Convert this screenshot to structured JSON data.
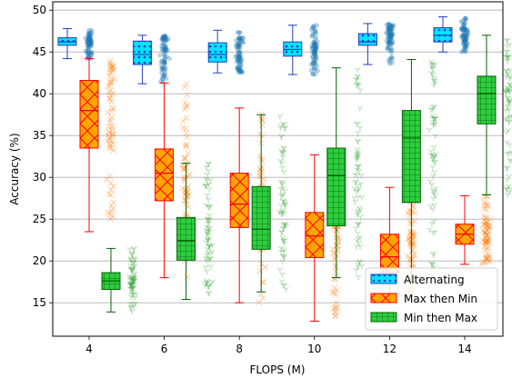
{
  "chart_data": {
    "type": "box",
    "title": "",
    "xlabel": "FLOPS (M)",
    "ylabel": "Accuracy (%)",
    "categories": [
      "4",
      "6",
      "8",
      "10",
      "12",
      "14"
    ],
    "ylim": [
      11,
      51
    ],
    "yticks": [
      15,
      20,
      25,
      30,
      35,
      40,
      45,
      50
    ],
    "grid": "horizontal",
    "legend_position": "lower right",
    "series": [
      {
        "name": "Alternating",
        "face_color": "#00e5ff",
        "edge_color": "#1f3fbf",
        "hatch": "dots",
        "point_color": "#1f77b4",
        "point_marker": "circle",
        "boxes": [
          {
            "whislo": 44.2,
            "q1": 45.8,
            "med": 46.2,
            "q3": 46.7,
            "whishi": 47.8
          },
          {
            "whislo": 41.2,
            "q1": 43.5,
            "med": 44.7,
            "q3": 46.3,
            "whishi": 47.0
          },
          {
            "whislo": 42.5,
            "q1": 43.8,
            "med": 44.7,
            "q3": 46.1,
            "whishi": 47.6
          },
          {
            "whislo": 42.3,
            "q1": 44.5,
            "med": 45.3,
            "q3": 46.2,
            "whishi": 48.2
          },
          {
            "whislo": 43.5,
            "q1": 45.8,
            "med": 46.2,
            "q3": 47.2,
            "whishi": 48.4
          },
          {
            "whislo": 45.0,
            "q1": 46.2,
            "med": 47.0,
            "q3": 47.9,
            "whishi": 49.2
          }
        ]
      },
      {
        "name": "Max then Min",
        "face_color": "#ffa500",
        "edge_color": "#ff0000",
        "hatch": "crosshatch",
        "point_color": "#ff7f0e",
        "point_marker": "x",
        "boxes": [
          {
            "whislo": 23.5,
            "q1": 33.5,
            "med": 38.0,
            "q3": 41.6,
            "whishi": 44.2
          },
          {
            "whislo": 18.0,
            "q1": 27.2,
            "med": 30.5,
            "q3": 33.4,
            "whishi": 41.3
          },
          {
            "whislo": 15.0,
            "q1": 24.0,
            "med": 26.8,
            "q3": 30.5,
            "whishi": 38.3
          },
          {
            "whislo": 12.8,
            "q1": 20.4,
            "med": 23.0,
            "q3": 25.8,
            "whishi": 32.7
          },
          {
            "whislo": 16.0,
            "q1": 18.6,
            "med": 20.5,
            "q3": 23.2,
            "whishi": 28.8
          },
          {
            "whislo": 19.6,
            "q1": 22.0,
            "med": 23.2,
            "q3": 24.4,
            "whishi": 27.8
          }
        ]
      },
      {
        "name": "Min then Max",
        "face_color": "#2ecc40",
        "edge_color": "#006400",
        "hatch": "squares",
        "point_color": "#2ca02c",
        "point_marker": "tri_down",
        "boxes": [
          {
            "whislo": 13.9,
            "q1": 16.6,
            "med": 17.6,
            "q3": 18.6,
            "whishi": 21.5
          },
          {
            "whislo": 15.4,
            "q1": 20.1,
            "med": 22.4,
            "q3": 25.2,
            "whishi": 31.7
          },
          {
            "whislo": 16.3,
            "q1": 21.4,
            "med": 23.8,
            "q3": 28.9,
            "whishi": 37.5
          },
          {
            "whislo": 18.0,
            "q1": 24.2,
            "med": 30.2,
            "q3": 33.5,
            "whishi": 43.1
          },
          {
            "whislo": 17.5,
            "q1": 27.0,
            "med": 34.7,
            "q3": 38.0,
            "whishi": 44.1
          },
          {
            "whislo": 27.9,
            "q1": 36.4,
            "med": 40.0,
            "q3": 42.1,
            "whishi": 47.0
          }
        ]
      }
    ]
  }
}
